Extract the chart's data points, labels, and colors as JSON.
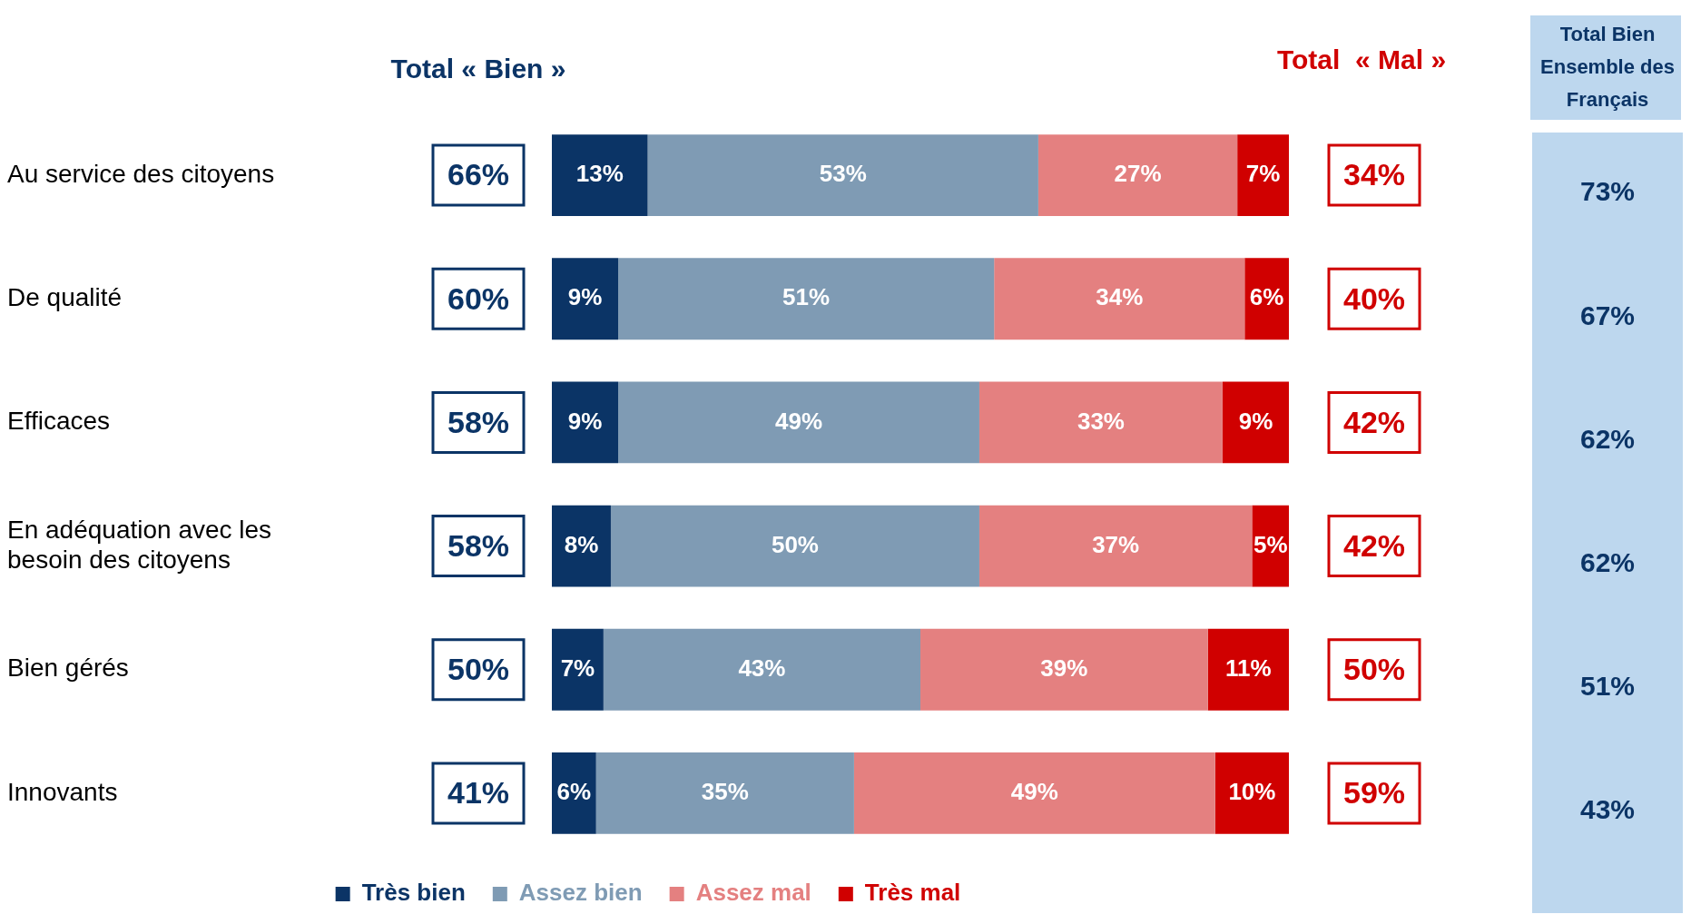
{
  "chart_data": {
    "type": "bar",
    "orientation": "horizontal",
    "stacked": true,
    "legend": "bottom",
    "tick_labels": "y",
    "categories": [
      "Au service des citoyens",
      "De qualité",
      "Efficaces",
      "En adéquation avec les besoin des citoyens",
      "Bien gérés",
      "Innovants"
    ],
    "series": [
      {
        "name": "Très bien",
        "color": "#0b3466",
        "values": [
          13,
          9,
          9,
          8,
          7,
          6
        ],
        "value_labels": [
          "13%",
          "9%",
          "9%",
          "8%",
          "7%",
          "6%"
        ]
      },
      {
        "name": "Assez bien",
        "color": "#7f9bb4",
        "values": [
          53,
          51,
          49,
          50,
          43,
          35
        ],
        "value_labels": [
          "53%",
          "51%",
          "49%",
          "50%",
          "43%",
          "35%"
        ]
      },
      {
        "name": "Assez mal",
        "color": "#e48080",
        "values": [
          27,
          34,
          33,
          37,
          39,
          49
        ],
        "value_labels": [
          "27%",
          "34%",
          "33%",
          "37%",
          "39%",
          "49%"
        ]
      },
      {
        "name": "Très mal",
        "color": "#d00000",
        "values": [
          7,
          6,
          9,
          5,
          11,
          10
        ],
        "value_labels": [
          "7%",
          "6%",
          "9%",
          "5%",
          "11%",
          "10%"
        ]
      }
    ],
    "annotations": [
      "Total « Bien »",
      "Total  « Mal »",
      "Total Bien Ensemble des Français",
      "66%",
      "60%",
      "58%",
      "58%",
      "50%",
      "41%",
      "34%",
      "40%",
      "42%",
      "42%",
      "50%",
      "59%",
      "73%",
      "67%",
      "62%",
      "62%",
      "51%",
      "43%"
    ]
  }
}
